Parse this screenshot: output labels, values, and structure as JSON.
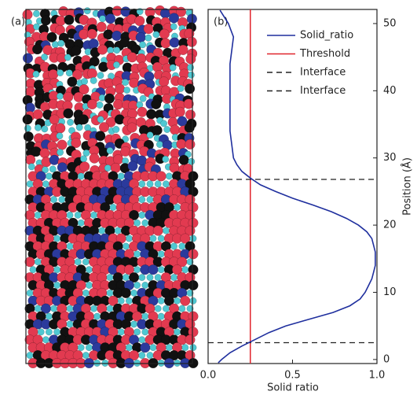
{
  "chart_data": {
    "type": "line",
    "panel_a_label": "(a)",
    "panel_b_label": "(b)",
    "xlabel": "Solid ratio",
    "ylabel": "Position (Å)",
    "xlim": [
      0,
      1
    ],
    "xticks": [
      {
        "value": 0,
        "label": "0.0"
      },
      0.5,
      {
        "value": 1,
        "label": "1.0"
      }
    ],
    "ylim": [
      -0.6,
      52.1
    ],
    "yticks": [
      0,
      10,
      20,
      30,
      40,
      50
    ],
    "positions": [
      52,
      50,
      48,
      46,
      44,
      42,
      40,
      38,
      36,
      34,
      32,
      30,
      29,
      28,
      27,
      26,
      25,
      24,
      23,
      22,
      21,
      20,
      19,
      18,
      17,
      16,
      15,
      14,
      13,
      12,
      11,
      10,
      9,
      8,
      7,
      6,
      5,
      4,
      3,
      2,
      1,
      0,
      -0.5
    ],
    "series": [
      {
        "name": "Solid_ratio",
        "color": "#1f2f9e",
        "values": [
          0.07,
          0.12,
          0.15,
          0.14,
          0.13,
          0.13,
          0.13,
          0.13,
          0.13,
          0.13,
          0.14,
          0.15,
          0.17,
          0.2,
          0.25,
          0.31,
          0.4,
          0.5,
          0.62,
          0.73,
          0.82,
          0.89,
          0.94,
          0.97,
          0.98,
          0.99,
          0.99,
          0.99,
          0.98,
          0.97,
          0.95,
          0.93,
          0.9,
          0.84,
          0.74,
          0.6,
          0.46,
          0.36,
          0.28,
          0.2,
          0.13,
          0.08,
          0.06
        ]
      }
    ],
    "threshold": {
      "name": "Threshold",
      "color": "#e0242c",
      "value": 0.25
    },
    "interfaces": [
      {
        "name": "Interface",
        "value": 26.8
      },
      {
        "name": "Interface",
        "value": 2.5
      }
    ],
    "legend": "upper right"
  }
}
